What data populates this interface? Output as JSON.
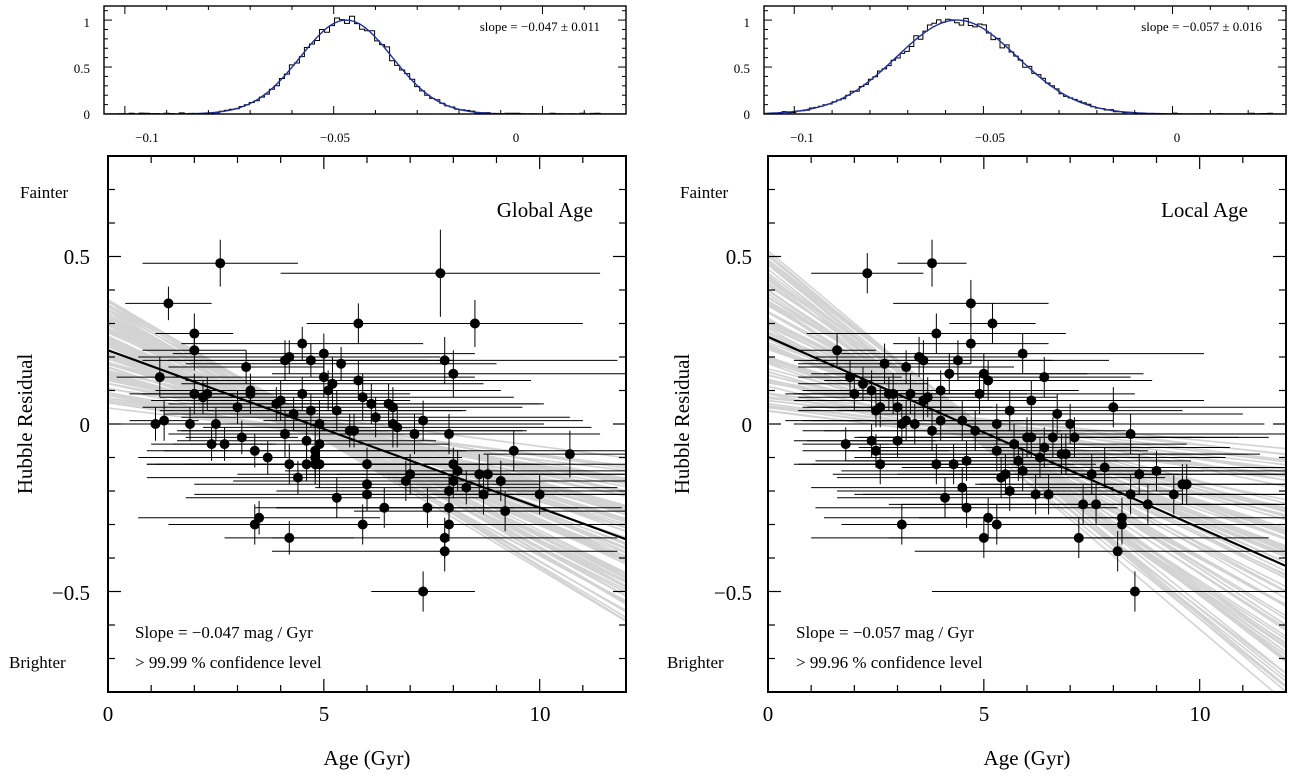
{
  "figure": {
    "left_panel": {
      "title": "Global Age",
      "xlabel": "Age (Gyr)",
      "ylabel": "Hubble Residual",
      "y_top_word": "Fainter",
      "y_bottom_word": "Brighter",
      "slope_text": "Slope = −0.047 mag / Gyr",
      "confidence_text": "> 99.99 % confidence level",
      "hist_label": "slope = −0.047 ± 0.011",
      "x_ticks": [
        "0",
        "5",
        "10"
      ],
      "y_ticks": [
        "0.5",
        "0",
        "−0.5"
      ],
      "hist_x_ticks": [
        "−0.1",
        "−0.05",
        "0"
      ],
      "hist_y_ticks": [
        "1",
        "0.5",
        "0"
      ]
    },
    "right_panel": {
      "title": "Local Age",
      "xlabel": "Age (Gyr)",
      "ylabel": "Hubble Residual",
      "y_top_word": "Fainter",
      "y_bottom_word": "Brighter",
      "slope_text": "Slope = −0.057 mag / Gyr",
      "confidence_text": "> 99.96 % confidence level",
      "hist_label": "slope = −0.057 ± 0.016",
      "x_ticks": [
        "0",
        "5",
        "10"
      ],
      "y_ticks": [
        "0.5",
        "0",
        "−0.5"
      ],
      "hist_x_ticks": [
        "−0.1",
        "−0.05",
        "0"
      ],
      "hist_y_ticks": [
        "1",
        "0.5",
        "0"
      ]
    }
  },
  "colors": {
    "points": "#000000",
    "fit_line": "#000000",
    "mcmc_lines": "#d3d3d3",
    "gaussian": "#1f2f9f",
    "histogram": "#000000"
  },
  "chart_data": [
    {
      "type": "scatter",
      "title": "Global Age",
      "xlabel": "Age (Gyr)",
      "ylabel": "Hubble Residual",
      "xlim": [
        0,
        12
      ],
      "ylim": [
        -0.8,
        0.8
      ],
      "fit": {
        "slope": -0.047,
        "intercept": 0.22
      },
      "mcmc_band": {
        "slope_low": -0.08,
        "slope_high": -0.015,
        "intercept_spread": 0.19
      },
      "series": [
        {
          "x": [
            1.1,
            1.2,
            1.3,
            1.4,
            1.9,
            2.0,
            2.0,
            2.0,
            2.2,
            2.3,
            2.4,
            2.5,
            2.6,
            2.7,
            3.0,
            3.1,
            3.2,
            3.3,
            3.3,
            3.4,
            3.4,
            3.5,
            3.7,
            3.9,
            4.0,
            4.1,
            4.1,
            4.2,
            4.2,
            4.2,
            4.3,
            4.4,
            4.5,
            4.5,
            4.6,
            4.6,
            4.7,
            4.7,
            4.8,
            4.8,
            4.8,
            4.9,
            4.9,
            4.9,
            5.0,
            5.0,
            5.1,
            5.2,
            5.3,
            5.3,
            5.4,
            5.6,
            5.7,
            5.8,
            5.8,
            5.9,
            5.9,
            6.0,
            6.0,
            6.0,
            6.1,
            6.2,
            6.4,
            6.5,
            6.6,
            6.6,
            6.7,
            6.9,
            7.0,
            7.1,
            7.3,
            7.3,
            7.4,
            7.7,
            7.8,
            7.8,
            7.8,
            7.9,
            7.9,
            7.9,
            7.9,
            8.0,
            8.0,
            8.0,
            8.1,
            8.3,
            8.5,
            8.6,
            8.7,
            8.8,
            9.1,
            9.2,
            9.4,
            10.0,
            10.7
          ],
          "y": [
            0.0,
            0.14,
            0.01,
            0.36,
            0.0,
            0.27,
            0.22,
            0.09,
            0.08,
            0.09,
            -0.06,
            0.0,
            0.48,
            -0.06,
            0.05,
            -0.04,
            0.17,
            0.1,
            0.09,
            -0.3,
            -0.08,
            -0.28,
            -0.1,
            0.06,
            0.07,
            0.19,
            -0.03,
            0.2,
            -0.34,
            -0.12,
            0.03,
            -0.16,
            0.24,
            0.09,
            -0.12,
            -0.05,
            0.19,
            0.04,
            -0.1,
            -0.12,
            -0.08,
            -0.06,
            -0.12,
            0.0,
            0.21,
            0.14,
            0.1,
            0.12,
            0.04,
            -0.22,
            0.18,
            -0.02,
            -0.02,
            0.3,
            0.13,
            0.08,
            -0.3,
            -0.21,
            -0.12,
            -0.18,
            0.06,
            0.02,
            -0.25,
            0.06,
            0.05,
            0.0,
            -0.01,
            -0.17,
            -0.15,
            -0.03,
            0.01,
            -0.5,
            -0.25,
            0.45,
            0.19,
            -0.38,
            -0.34,
            -0.3,
            -0.2,
            -0.03,
            -0.25,
            0.15,
            -0.17,
            -0.12,
            -0.14,
            -0.19,
            0.3,
            -0.15,
            -0.21,
            -0.15,
            -0.17,
            -0.26,
            -0.08,
            -0.21,
            -0.09
          ],
          "xerr": [
            0.9,
            1.0,
            0.8,
            1.0,
            1.0,
            0.9,
            1.2,
            1.5,
            1.0,
            1.5,
            1.4,
            1.6,
            1.8,
            1.2,
            2.2,
            1.3,
            1.8,
            2.0,
            2.5,
            2.0,
            2.5,
            2.8,
            3.0,
            2.5,
            3.0,
            3.3,
            2.7,
            3.5,
            1.5,
            3.3,
            3.0,
            3.5,
            2.8,
            2.5,
            3.5,
            3.0,
            3.3,
            3.5,
            3.4,
            3.0,
            3.5,
            3.0,
            4.0,
            3.5,
            3.5,
            3.5,
            4.0,
            3.5,
            3.0,
            3.5,
            3.6,
            4.0,
            4.0,
            1.2,
            4.0,
            3.5,
            3.5,
            4.0,
            4.0,
            4.0,
            4.0,
            4.5,
            3.0,
            3.5,
            3.0,
            3.5,
            4.5,
            4.0,
            4.0,
            4.0,
            3.7,
            1.2,
            3.5,
            3.7,
            4.0,
            4.0,
            4.0,
            4.0,
            4.0,
            3.5,
            4.0,
            4.2,
            4.0,
            4.0,
            4.0,
            3.5,
            2.5,
            4.0,
            3.5,
            3.5,
            3.5,
            3.5,
            3.5,
            2.5,
            2.0
          ],
          "yerr": [
            0.05,
            0.06,
            0.06,
            0.05,
            0.05,
            0.06,
            0.06,
            0.06,
            0.05,
            0.05,
            0.05,
            0.05,
            0.07,
            0.05,
            0.05,
            0.05,
            0.05,
            0.05,
            0.06,
            0.06,
            0.05,
            0.05,
            0.05,
            0.05,
            0.06,
            0.06,
            0.07,
            0.05,
            0.05,
            0.06,
            0.05,
            0.05,
            0.05,
            0.05,
            0.05,
            0.06,
            0.05,
            0.05,
            0.06,
            0.06,
            0.07,
            0.07,
            0.07,
            0.07,
            0.06,
            0.06,
            0.06,
            0.08,
            0.06,
            0.06,
            0.05,
            0.05,
            0.05,
            0.06,
            0.06,
            0.07,
            0.06,
            0.05,
            0.05,
            0.05,
            0.06,
            0.06,
            0.06,
            0.06,
            0.06,
            0.07,
            0.06,
            0.06,
            0.06,
            0.06,
            0.06,
            0.06,
            0.06,
            0.13,
            0.07,
            0.06,
            0.06,
            0.05,
            0.05,
            0.06,
            0.05,
            0.07,
            0.05,
            0.05,
            0.06,
            0.05,
            0.07,
            0.06,
            0.06,
            0.06,
            0.06,
            0.06,
            0.06,
            0.06,
            0.07
          ]
        }
      ],
      "slope_histogram": {
        "mean": -0.047,
        "sigma": 0.011,
        "xlim": [
          -0.105,
          0.02
        ],
        "ylim": [
          0,
          1.15
        ]
      }
    },
    {
      "type": "scatter",
      "title": "Local Age",
      "xlabel": "Age (Gyr)",
      "ylabel": "Hubble Residual",
      "xlim": [
        0,
        12
      ],
      "ylim": [
        -0.8,
        0.8
      ],
      "fit": {
        "slope": -0.057,
        "intercept": 0.26
      },
      "mcmc_band": {
        "slope_low": -0.11,
        "slope_high": -0.012,
        "intercept_spread": 0.31
      },
      "series": [
        {
          "x": [
            1.6,
            1.8,
            1.9,
            2.0,
            2.2,
            2.3,
            2.4,
            2.4,
            2.5,
            2.5,
            2.6,
            2.6,
            2.7,
            2.8,
            2.9,
            3.0,
            3.0,
            3.1,
            3.1,
            3.2,
            3.2,
            3.3,
            3.4,
            3.5,
            3.6,
            3.6,
            3.7,
            3.8,
            3.8,
            3.9,
            3.9,
            4.0,
            4.0,
            4.1,
            4.2,
            4.3,
            4.4,
            4.5,
            4.5,
            4.6,
            4.6,
            4.7,
            4.7,
            4.8,
            4.9,
            5.0,
            5.0,
            5.1,
            5.1,
            5.2,
            5.3,
            5.3,
            5.3,
            5.4,
            5.5,
            5.6,
            5.6,
            5.7,
            5.8,
            5.9,
            5.9,
            6.0,
            6.1,
            6.1,
            6.2,
            6.3,
            6.4,
            6.4,
            6.5,
            6.6,
            6.7,
            6.8,
            6.9,
            7.0,
            7.1,
            7.2,
            7.3,
            7.5,
            7.6,
            7.8,
            8.0,
            8.1,
            8.2,
            8.2,
            8.4,
            8.4,
            8.5,
            8.6,
            8.8,
            9.0,
            9.4,
            9.6,
            9.7
          ],
          "y": [
            0.22,
            -0.06,
            0.14,
            0.09,
            0.12,
            0.45,
            0.1,
            -0.05,
            -0.08,
            0.04,
            0.05,
            -0.12,
            0.18,
            0.09,
            0.09,
            0.05,
            -0.05,
            0.0,
            -0.3,
            0.17,
            0.01,
            0.09,
            0.0,
            0.2,
            0.07,
            0.19,
            0.08,
            0.48,
            -0.02,
            0.27,
            -0.12,
            0.01,
            0.1,
            -0.22,
            0.15,
            -0.12,
            0.19,
            -0.19,
            0.01,
            -0.25,
            -0.11,
            0.36,
            0.24,
            -0.02,
            0.09,
            -0.34,
            0.15,
            -0.28,
            0.13,
            0.3,
            -0.08,
            -0.3,
            0.0,
            -0.16,
            -0.15,
            0.04,
            -0.2,
            -0.06,
            -0.11,
            -0.14,
            0.21,
            -0.04,
            0.07,
            -0.04,
            -0.21,
            -0.1,
            -0.07,
            0.14,
            -0.21,
            -0.04,
            0.03,
            -0.09,
            -0.09,
            0.0,
            -0.04,
            -0.34,
            -0.24,
            -0.15,
            -0.24,
            -0.13,
            0.05,
            -0.38,
            -0.3,
            -0.28,
            -0.03,
            -0.21,
            -0.5,
            -0.15,
            -0.24,
            -0.14,
            -0.21,
            -0.18,
            -0.18
          ],
          "yerr": [
            0.05,
            0.05,
            0.05,
            0.05,
            0.05,
            0.06,
            0.06,
            0.05,
            0.05,
            0.05,
            0.06,
            0.06,
            0.06,
            0.05,
            0.06,
            0.05,
            0.05,
            0.06,
            0.06,
            0.05,
            0.06,
            0.06,
            0.06,
            0.06,
            0.06,
            0.06,
            0.06,
            0.07,
            0.06,
            0.06,
            0.06,
            0.06,
            0.06,
            0.06,
            0.06,
            0.06,
            0.06,
            0.06,
            0.06,
            0.06,
            0.06,
            0.07,
            0.06,
            0.06,
            0.06,
            0.06,
            0.06,
            0.06,
            0.06,
            0.06,
            0.06,
            0.06,
            0.06,
            0.06,
            0.06,
            0.06,
            0.06,
            0.06,
            0.06,
            0.06,
            0.06,
            0.06,
            0.06,
            0.06,
            0.06,
            0.06,
            0.06,
            0.06,
            0.06,
            0.06,
            0.06,
            0.06,
            0.06,
            0.06,
            0.06,
            0.06,
            0.06,
            0.06,
            0.06,
            0.06,
            0.06,
            0.06,
            0.06,
            0.06,
            0.06,
            0.06,
            0.06,
            0.06,
            0.06,
            0.06,
            0.06,
            0.06,
            0.06
          ],
          "xerr": [
            0.9,
            1.0,
            1.2,
            1.3,
            1.5,
            1.3,
            1.6,
            1.5,
            1.7,
            1.8,
            1.7,
            2.0,
            2.0,
            2.2,
            2.5,
            2.2,
            2.4,
            2.5,
            0.4,
            2.5,
            2.8,
            2.7,
            2.8,
            2.5,
            3.0,
            3.0,
            3.0,
            0.8,
            3.0,
            3.0,
            3.2,
            3.2,
            3.2,
            2.5,
            3.2,
            3.3,
            3.5,
            3.5,
            3.5,
            3.5,
            3.5,
            1.8,
            1.8,
            3.5,
            3.6,
            4.0,
            3.7,
            3.8,
            3.8,
            1.0,
            3.5,
            3.6,
            3.6,
            3.8,
            4.0,
            4.0,
            4.0,
            4.0,
            4.0,
            4.2,
            4.2,
            4.0,
            4.0,
            4.0,
            4.2,
            4.3,
            4.3,
            2.0,
            4.3,
            4.3,
            4.3,
            4.3,
            4.5,
            4.5,
            4.5,
            4.4,
            4.5,
            4.5,
            4.5,
            4.7,
            4.5,
            4.7,
            4.7,
            4.7,
            4.7,
            4.7,
            4.7,
            4.7,
            4.7,
            4.8,
            4.8,
            4.8,
            4.8
          ]
        }
      ],
      "slope_histogram": {
        "mean": -0.057,
        "sigma": 0.016,
        "xlim": [
          -0.108,
          0.03
        ],
        "ylim": [
          0,
          1.15
        ]
      }
    }
  ]
}
